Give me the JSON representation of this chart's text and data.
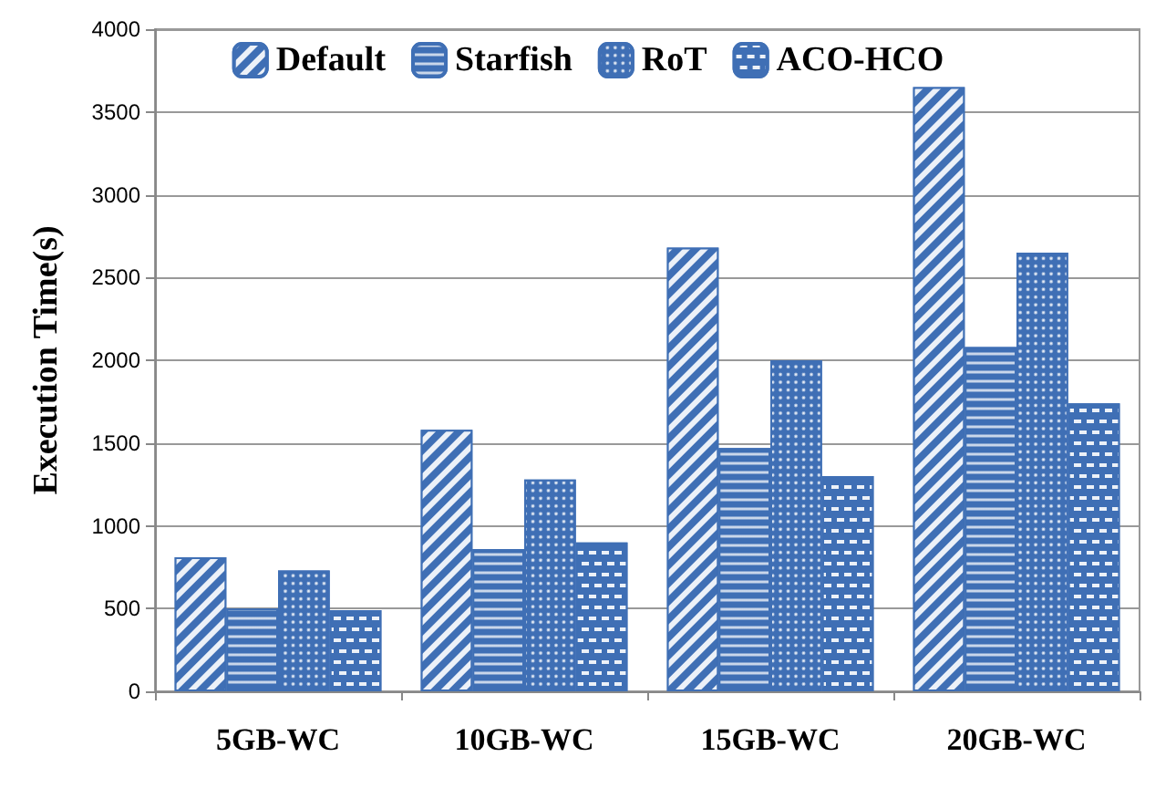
{
  "chart_data": {
    "type": "bar",
    "ylabel": "Execution Time(s)",
    "categories": [
      "5GB-WC",
      "10GB-WC",
      "15GB-WC",
      "20GB-WC"
    ],
    "series": [
      {
        "name": "Default",
        "color": "#3f6fb5",
        "values": [
          810,
          1580,
          2680,
          3650
        ]
      },
      {
        "name": "Starfish",
        "color": "#3f6fb5",
        "values": [
          500,
          860,
          1470,
          2080
        ]
      },
      {
        "name": "RoT",
        "color": "#3f6fb5",
        "values": [
          730,
          1280,
          2000,
          2650
        ]
      },
      {
        "name": "ACO-HCO",
        "color": "#3f6fb5",
        "values": [
          490,
          900,
          1300,
          1740
        ]
      }
    ],
    "ylim": [
      0,
      4000
    ],
    "yticks": [
      0,
      500,
      1000,
      1500,
      2000,
      2500,
      3000,
      3500,
      4000
    ],
    "grid": "y",
    "legend": "top"
  }
}
